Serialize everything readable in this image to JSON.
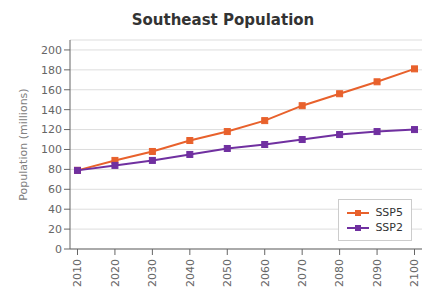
{
  "chart_data": {
    "type": "line",
    "title": "Southeast Population",
    "ylabel": "Population (millions)",
    "x": [
      2010,
      2020,
      2030,
      2040,
      2050,
      2060,
      2070,
      2080,
      2090,
      2100
    ],
    "series": [
      {
        "name": "SSP5",
        "color": "#E8612C",
        "values": [
          79,
          89,
          98,
          109,
          118,
          129,
          144,
          156,
          168,
          181
        ]
      },
      {
        "name": "SSP2",
        "color": "#7030A0",
        "values": [
          79,
          84,
          89,
          95,
          101,
          105,
          110,
          115,
          118,
          120
        ]
      }
    ],
    "xlim": [
      2008,
      2102
    ],
    "xticks": [
      2010,
      2020,
      2030,
      2040,
      2050,
      2060,
      2070,
      2080,
      2090,
      2100
    ],
    "ylim": [
      0,
      210
    ],
    "yticks": [
      0,
      20,
      40,
      60,
      80,
      100,
      120,
      140,
      160,
      180,
      200
    ],
    "grid": true,
    "legend": "lower right",
    "marker": "square"
  }
}
